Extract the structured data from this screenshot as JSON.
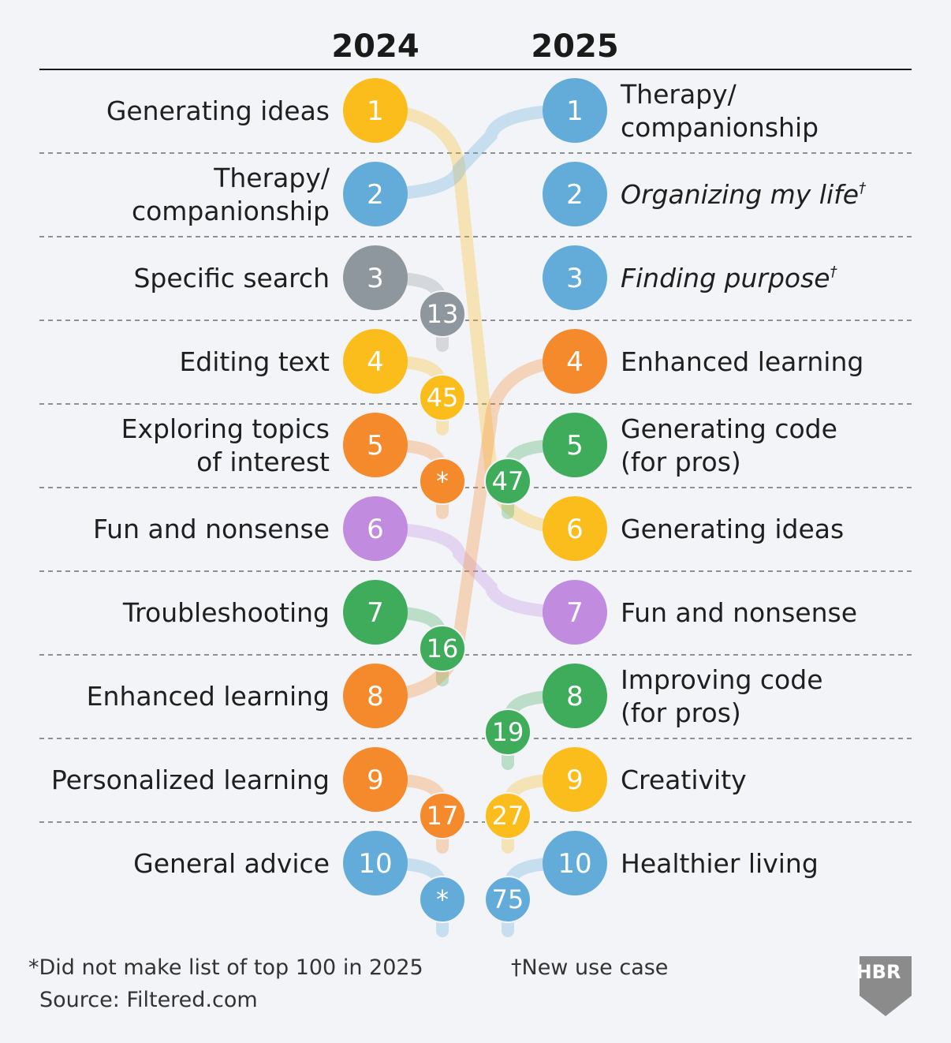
{
  "chart_data": {
    "type": "table",
    "col_2024": "2024",
    "col_2025": "2025",
    "rows_2024": [
      {
        "rank": "1",
        "label": [
          "Generating ideas"
        ],
        "new_rank": "6",
        "color": "#fbbd1c"
      },
      {
        "rank": "2",
        "label": [
          "Therapy/",
          "companionship"
        ],
        "new_rank": "1",
        "color": "#63acd9"
      },
      {
        "rank": "3",
        "label": [
          "Specific search"
        ],
        "new_rank": "13",
        "color": "#8f979e"
      },
      {
        "rank": "4",
        "label": [
          "Editing text"
        ],
        "new_rank": "45",
        "color": "#fbbd1c"
      },
      {
        "rank": "5",
        "label": [
          "Exploring topics",
          "of interest"
        ],
        "new_rank": "*",
        "color": "#f58a2c"
      },
      {
        "rank": "6",
        "label": [
          "Fun and nonsense"
        ],
        "new_rank": "7",
        "color": "#c18be0"
      },
      {
        "rank": "7",
        "label": [
          "Troubleshooting"
        ],
        "new_rank": "16",
        "color": "#3fac5b"
      },
      {
        "rank": "8",
        "label": [
          "Enhanced learning"
        ],
        "new_rank": "4",
        "color": "#f58a2c"
      },
      {
        "rank": "9",
        "label": [
          "Personalized learning"
        ],
        "new_rank": "17",
        "color": "#f58a2c"
      },
      {
        "rank": "10",
        "label": [
          "General advice"
        ],
        "new_rank": "*",
        "color": "#63acd9"
      }
    ],
    "rows_2025": [
      {
        "rank": "1",
        "label": [
          "Therapy/",
          "companionship"
        ],
        "italic": false,
        "mark": "",
        "old_rank": "2",
        "color": "#63acd9"
      },
      {
        "rank": "2",
        "label": [
          "Organizing my life"
        ],
        "italic": true,
        "mark": "†",
        "old_rank": "",
        "color": "#63acd9"
      },
      {
        "rank": "3",
        "label": [
          "Finding purpose"
        ],
        "italic": true,
        "mark": "†",
        "old_rank": "",
        "color": "#63acd9"
      },
      {
        "rank": "4",
        "label": [
          "Enhanced learning"
        ],
        "italic": false,
        "mark": "",
        "old_rank": "8",
        "color": "#f58a2c"
      },
      {
        "rank": "5",
        "label": [
          "Generating code",
          "(for pros)"
        ],
        "italic": false,
        "mark": "",
        "old_rank": "47",
        "color": "#3fac5b"
      },
      {
        "rank": "6",
        "label": [
          "Generating ideas"
        ],
        "italic": false,
        "mark": "",
        "old_rank": "1",
        "color": "#fbbd1c"
      },
      {
        "rank": "7",
        "label": [
          "Fun and nonsense"
        ],
        "italic": false,
        "mark": "",
        "old_rank": "6",
        "color": "#c18be0"
      },
      {
        "rank": "8",
        "label": [
          "Improving code",
          "(for pros)"
        ],
        "italic": false,
        "mark": "",
        "old_rank": "19",
        "color": "#3fac5b"
      },
      {
        "rank": "9",
        "label": [
          "Creativity"
        ],
        "italic": false,
        "mark": "",
        "old_rank": "27",
        "color": "#fbbd1c"
      },
      {
        "rank": "10",
        "label": [
          "Healthier living"
        ],
        "italic": false,
        "mark": "",
        "old_rank": "75",
        "color": "#63acd9"
      }
    ]
  },
  "footnotes": {
    "asterisk": "*Did not make list of top 100 in 2025",
    "dagger": "†New use case",
    "source": "Source: Filtered.com"
  },
  "logo": "HBR"
}
